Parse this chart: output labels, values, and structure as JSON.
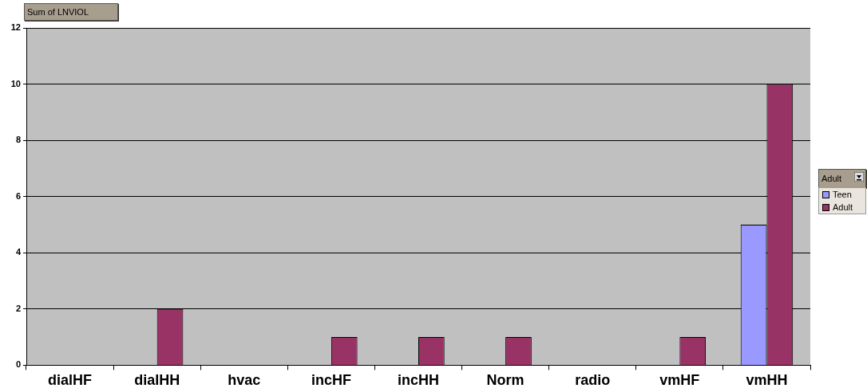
{
  "chart_data": {
    "type": "bar",
    "title": "Sum of LNVIOL",
    "legend_title": "Adult",
    "categories": [
      "dialHF",
      "dialHH",
      "hvac",
      "incHF",
      "incHH",
      "Norm",
      "radio",
      "vmHF",
      "vmHH"
    ],
    "series": [
      {
        "name": "Teen",
        "color": "#9999ff",
        "values": [
          null,
          null,
          null,
          null,
          null,
          null,
          null,
          null,
          5
        ]
      },
      {
        "name": "Adult",
        "color": "#993366",
        "values": [
          null,
          2,
          null,
          1,
          1,
          1,
          null,
          1,
          10
        ]
      }
    ],
    "ylim": [
      0,
      12
    ],
    "yticks": [
      0,
      2,
      4,
      6,
      8,
      10,
      12
    ],
    "grid": "y",
    "legend": "right"
  }
}
